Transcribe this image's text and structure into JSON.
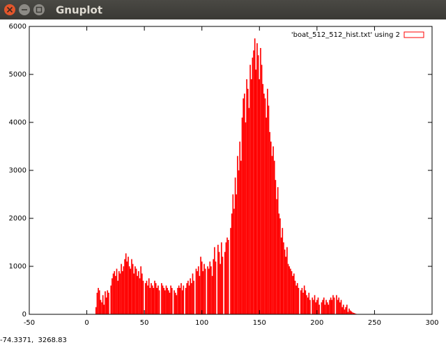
{
  "window": {
    "title": "Gnuplot",
    "status": "-74.3371,  3268.83"
  },
  "chart_data": {
    "type": "bar",
    "legend_label": "'boat_512_512_hist.txt' using 2",
    "legend": "top-right",
    "color": "#ff0000",
    "grid": false,
    "xlim": [
      -50,
      300
    ],
    "ylim": [
      0,
      6000
    ],
    "xticks": [
      -50,
      0,
      50,
      100,
      150,
      200,
      250,
      300
    ],
    "yticks": [
      0,
      1000,
      2000,
      3000,
      4000,
      5000,
      6000
    ],
    "x": [
      0,
      1,
      2,
      3,
      4,
      5,
      6,
      7,
      8,
      9,
      10,
      11,
      12,
      13,
      14,
      15,
      16,
      17,
      18,
      19,
      20,
      21,
      22,
      23,
      24,
      25,
      26,
      27,
      28,
      29,
      30,
      31,
      32,
      33,
      34,
      35,
      36,
      37,
      38,
      39,
      40,
      41,
      42,
      43,
      44,
      45,
      46,
      47,
      48,
      49,
      50,
      51,
      52,
      53,
      54,
      55,
      56,
      57,
      58,
      59,
      60,
      61,
      62,
      63,
      64,
      65,
      66,
      67,
      68,
      69,
      70,
      71,
      72,
      73,
      74,
      75,
      76,
      77,
      78,
      79,
      80,
      81,
      82,
      83,
      84,
      85,
      86,
      87,
      88,
      89,
      90,
      91,
      92,
      93,
      94,
      95,
      96,
      97,
      98,
      99,
      100,
      101,
      102,
      103,
      104,
      105,
      106,
      107,
      108,
      109,
      110,
      111,
      112,
      113,
      114,
      115,
      116,
      117,
      118,
      119,
      120,
      121,
      122,
      123,
      124,
      125,
      126,
      127,
      128,
      129,
      130,
      131,
      132,
      133,
      134,
      135,
      136,
      137,
      138,
      139,
      140,
      141,
      142,
      143,
      144,
      145,
      146,
      147,
      148,
      149,
      150,
      151,
      152,
      153,
      154,
      155,
      156,
      157,
      158,
      159,
      160,
      161,
      162,
      163,
      164,
      165,
      166,
      167,
      168,
      169,
      170,
      171,
      172,
      173,
      174,
      175,
      176,
      177,
      178,
      179,
      180,
      181,
      182,
      183,
      184,
      185,
      186,
      187,
      188,
      189,
      190,
      191,
      192,
      193,
      194,
      195,
      196,
      197,
      198,
      199,
      200,
      201,
      202,
      203,
      204,
      205,
      206,
      207,
      208,
      209,
      210,
      211,
      212,
      213,
      214,
      215,
      216,
      217,
      218,
      219,
      220,
      221,
      222,
      223,
      224,
      225,
      226,
      227,
      228,
      229,
      230,
      231,
      232,
      233,
      234,
      235,
      236,
      237,
      238,
      239,
      240,
      241,
      242,
      243,
      244,
      245,
      246,
      247,
      248,
      249,
      250,
      251,
      252,
      253,
      254,
      255
    ],
    "values": [
      0,
      0,
      0,
      0,
      0,
      0,
      0,
      0,
      150,
      450,
      550,
      500,
      300,
      250,
      400,
      200,
      480,
      350,
      500,
      450,
      0,
      600,
      750,
      850,
      900,
      800,
      950,
      700,
      900,
      850,
      1050,
      900,
      1000,
      1150,
      1270,
      1100,
      1200,
      1000,
      950,
      1150,
      1050,
      850,
      1000,
      950,
      800,
      900,
      750,
      1000,
      850,
      700,
      0,
      650,
      700,
      600,
      750,
      550,
      650,
      600,
      550,
      700,
      650,
      550,
      600,
      500,
      0,
      650,
      600,
      550,
      500,
      600,
      550,
      500,
      450,
      600,
      550,
      0,
      500,
      450,
      400,
      550,
      600,
      550,
      650,
      500,
      600,
      0,
      550,
      650,
      700,
      600,
      750,
      650,
      850,
      700,
      0,
      950,
      900,
      1000,
      800,
      1200,
      1100,
      900,
      1050,
      950,
      0,
      1000,
      950,
      1100,
      1000,
      800,
      1150,
      1400,
      1100,
      0,
      1450,
      1300,
      1050,
      1500,
      1200,
      0,
      1300,
      1500,
      1600,
      1550,
      0,
      1800,
      2100,
      2500,
      2200,
      2850,
      2500,
      3300,
      3000,
      3600,
      3200,
      4100,
      4500,
      4600,
      4000,
      4900,
      4700,
      4300,
      5200,
      4900,
      5350,
      5500,
      5750,
      5100,
      5650,
      5400,
      4900,
      5550,
      5200,
      4800,
      4600,
      4500,
      4100,
      4700,
      4350,
      3800,
      3600,
      3300,
      3500,
      3200,
      2800,
      2400,
      2650,
      2100,
      2000,
      1600,
      1800,
      1500,
      1350,
      1200,
      1400,
      1050,
      1000,
      950,
      900,
      800,
      850,
      700,
      600,
      650,
      550,
      0,
      500,
      550,
      450,
      600,
      500,
      400,
      350,
      450,
      300,
      0,
      350,
      300,
      400,
      250,
      300,
      350,
      200,
      0,
      250,
      300,
      350,
      200,
      300,
      250,
      200,
      300,
      350,
      300,
      400,
      350,
      0,
      400,
      300,
      350,
      250,
      300,
      150,
      200,
      100,
      150,
      200,
      50,
      120,
      80,
      60,
      40,
      30,
      20,
      10,
      0,
      0,
      0,
      0,
      0,
      0,
      0,
      0,
      0,
      0,
      0,
      0,
      0,
      0,
      0,
      0,
      0,
      0,
      0,
      0,
      0
    ]
  }
}
